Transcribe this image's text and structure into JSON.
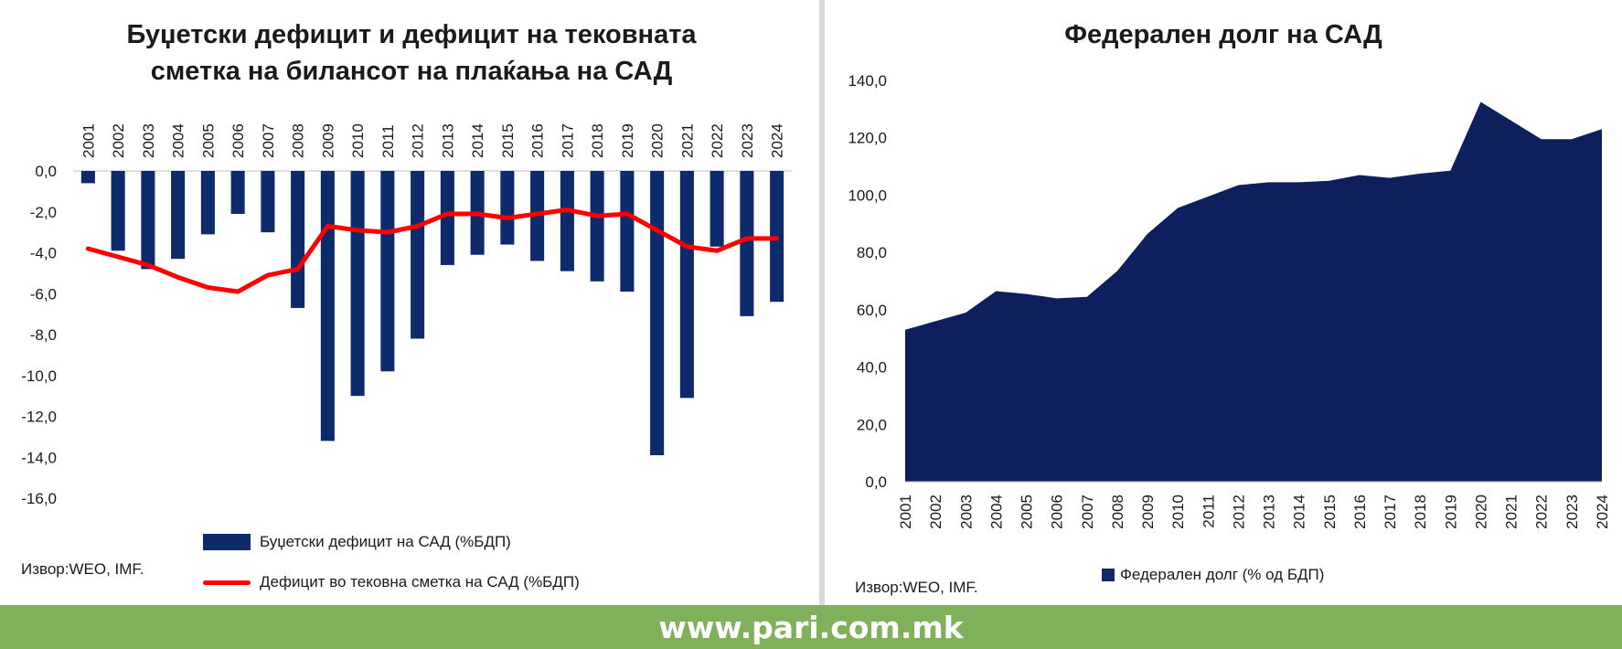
{
  "footer": {
    "url": "www.pari.com.mk"
  },
  "colors": {
    "navy": "#0d2a6b",
    "area": "#0d1f5c",
    "red": "#ff0000",
    "footer": "#80b05a"
  },
  "chart_data": [
    {
      "type": "bar",
      "title": "Буџетски дефицит и дефицит на тековната сметка на билансот на плаќања на САД",
      "title_lines": [
        "Буџетски дефицит и дефицит на тековната",
        "сметка на билансот на плаќања  на САД"
      ],
      "categories": [
        "2001",
        "2002",
        "2003",
        "2004",
        "2005",
        "2006",
        "2007",
        "2008",
        "2009",
        "2010",
        "2011",
        "2012",
        "2013",
        "2014",
        "2015",
        "2016",
        "2017",
        "2018",
        "2019",
        "2020",
        "2021",
        "2022",
        "2023",
        "2024"
      ],
      "yticks": [
        "0,0",
        "-2,0",
        "-4,0",
        "-6,0",
        "-8,0",
        "-10,0",
        "-12,0",
        "-14,0",
        "-16,0"
      ],
      "ylim": [
        -16,
        0
      ],
      "x_axis_position": "top",
      "series": [
        {
          "name": "Буџетски дефицит на САД (%БДП)",
          "type": "bar",
          "values": [
            -0.6,
            -3.9,
            -4.8,
            -4.3,
            -3.1,
            -2.1,
            -3.0,
            -6.7,
            -13.2,
            -11.0,
            -9.8,
            -8.2,
            -4.6,
            -4.1,
            -3.6,
            -4.4,
            -4.9,
            -5.4,
            -5.9,
            -13.9,
            -11.1,
            -3.7,
            -7.1,
            -6.4
          ]
        },
        {
          "name": "Дефицит во тековна сметка на САД (%БДП)",
          "type": "line",
          "values": [
            -3.8,
            -4.2,
            -4.6,
            -5.2,
            -5.7,
            -5.9,
            -5.1,
            -4.8,
            -2.7,
            -2.9,
            -3.0,
            -2.7,
            -2.1,
            -2.1,
            -2.3,
            -2.1,
            -1.9,
            -2.2,
            -2.1,
            -2.9,
            -3.7,
            -3.9,
            -3.3,
            -3.3
          ]
        }
      ],
      "legend_position": "bottom",
      "source": "Извор:WEO, IMF."
    },
    {
      "type": "area",
      "title": "Федерален долг на САД",
      "categories": [
        "2001",
        "2002",
        "2003",
        "2004",
        "2005",
        "2006",
        "2007",
        "2008",
        "2009",
        "2010",
        "2011",
        "2012",
        "2013",
        "2014",
        "2015",
        "2016",
        "2017",
        "2018",
        "2019",
        "2020",
        "2021",
        "2022",
        "2023",
        "2024"
      ],
      "yticks": [
        "140,0",
        "120,0",
        "100,0",
        "80,0",
        "60,0",
        "40,0",
        "20,0",
        "0,0"
      ],
      "ylim": [
        0,
        140
      ],
      "series": [
        {
          "name": "Федерален долг (% од БДП)",
          "values": [
            53.0,
            56.0,
            59.0,
            66.5,
            65.5,
            64.0,
            64.5,
            73.5,
            86.5,
            95.5,
            99.5,
            103.5,
            104.5,
            104.5,
            105.0,
            107.0,
            106.0,
            107.5,
            108.5,
            132.5,
            126.0,
            119.5,
            119.5,
            123.0
          ]
        }
      ],
      "legend_position": "bottom",
      "source": "Извор:WEO, IMF."
    }
  ]
}
